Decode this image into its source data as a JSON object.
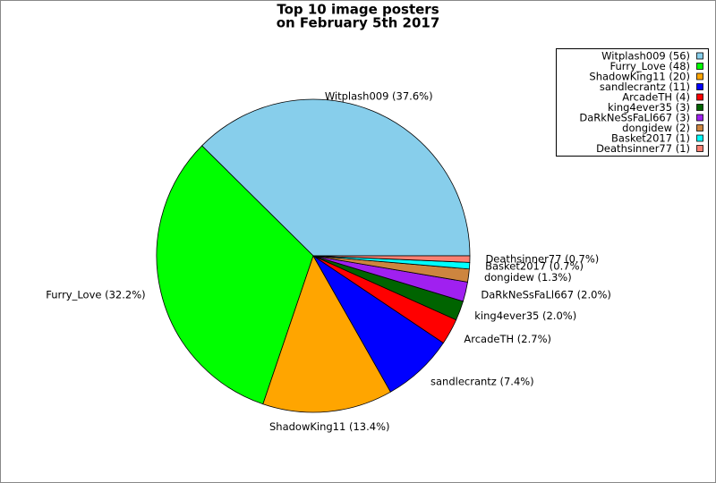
{
  "chart_data": {
    "type": "pie",
    "title": [
      "Top 10 image posters",
      "on February 5th 2017"
    ],
    "categories": [
      "Witplash009",
      "Furry_Love",
      "ShadowKing11",
      "sandlecrantz",
      "ArcadeTH",
      "king4ever35",
      "DaRkNeSsFaLl667",
      "dongidew",
      "Basket2017",
      "Deathsinner77"
    ],
    "values": [
      56,
      48,
      20,
      11,
      4,
      3,
      3,
      2,
      1,
      1
    ],
    "legend_labels": [
      "Witplash009 (56)",
      "Furry_Love (48)",
      "ShadowKing11 (20)",
      "sandlecrantz (11)",
      "ArcadeTH (4)",
      "king4ever35 (3)",
      "DaRkNeSsFaLl667 (3)",
      "dongidew (2)",
      "Basket2017 (1)",
      "Deathsinner77 (1)"
    ],
    "value_labels": [
      "Witplash009 (37.6%)",
      "Furry_Love (32.2%)",
      "ShadowKing11 (13.4%)",
      "sandlecrantz (7.4%)",
      "ArcadeTH (2.7%)",
      "king4ever35 (2.0%)",
      "DaRkNeSsFaLl667 (2.0%)",
      "dongidew (1.3%)",
      "Basket2017 (0.7%)",
      "Deathsinner77 (0.7%)"
    ],
    "colors": [
      "#87ceeb",
      "#00ff00",
      "#ffa500",
      "#0000ff",
      "#ff0000",
      "#006400",
      "#a020f0",
      "#cd853f",
      "#00ffff",
      "#fa8072"
    ],
    "legend": "upper right"
  }
}
